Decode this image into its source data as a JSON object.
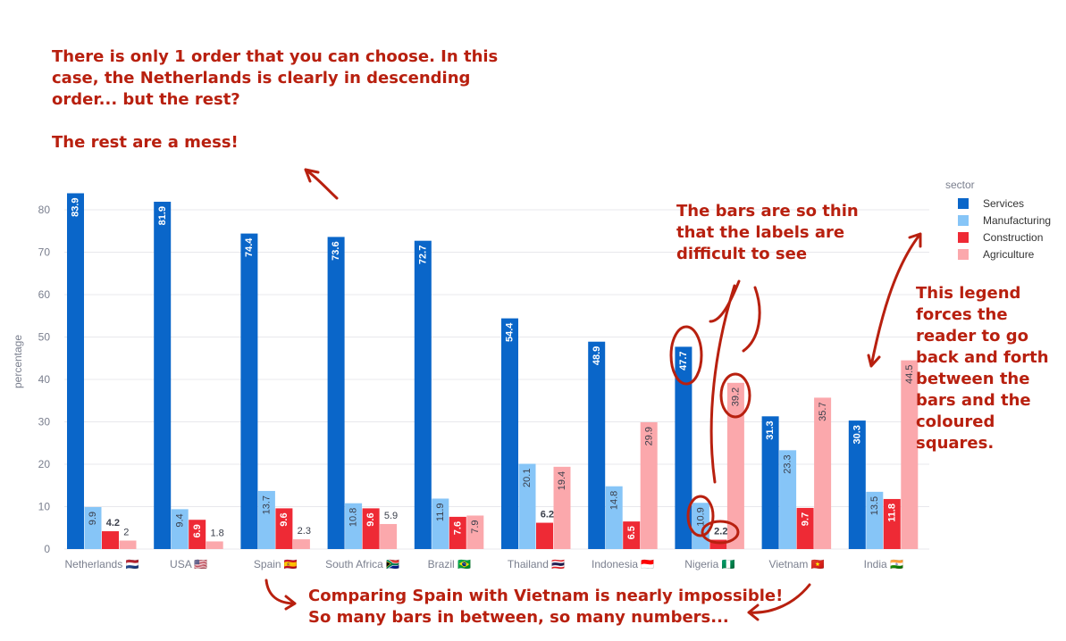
{
  "chart_data": {
    "type": "bar",
    "categories": [
      "Netherlands 🇳🇱",
      "USA 🇺🇸",
      "Spain 🇪🇸",
      "South Africa 🇿🇦",
      "Brazil 🇧🇷",
      "Thailand 🇹🇭",
      "Indonesia 🇮🇩",
      "Nigeria 🇳🇬",
      "Vietnam 🇻🇳",
      "India 🇮🇳"
    ],
    "series": [
      {
        "name": "Services",
        "color": "#0a66c9",
        "values": [
          83.9,
          81.9,
          74.4,
          73.6,
          72.7,
          54.4,
          48.9,
          47.7,
          31.3,
          30.3
        ]
      },
      {
        "name": "Manufacturing",
        "color": "#86c5f7",
        "values": [
          9.9,
          9.4,
          13.7,
          10.8,
          11.9,
          20.1,
          14.8,
          10.9,
          23.3,
          13.5
        ]
      },
      {
        "name": "Construction",
        "color": "#ee2a35",
        "values": [
          4.2,
          6.9,
          9.6,
          9.6,
          7.6,
          6.2,
          6.5,
          2.2,
          9.7,
          11.8
        ]
      },
      {
        "name": "Agriculture",
        "color": "#fba8ac",
        "values": [
          2,
          1.8,
          2.3,
          5.9,
          7.9,
          19.4,
          29.9,
          39.2,
          35.7,
          44.5
        ]
      }
    ],
    "ylabel": "percentage",
    "xlabel": "",
    "ylim": [
      0,
      84
    ],
    "yticks": [
      0,
      10,
      20,
      30,
      40,
      50,
      60,
      70,
      80
    ],
    "legend_title": "sector",
    "legend_position": "right",
    "grid": true
  },
  "annotations": {
    "order_note": "There is only 1 order that you can choose. In this\ncase, the Netherlands is clearly in descending\norder... but the rest?\n\nThe rest are a mess!",
    "thin_bars_note": "The bars are so thin\nthat the labels are\ndifficult to see",
    "legend_note": "This legend\nforces the\nreader to go\nback and forth\nbetween the\nbars and the\ncoloured\nsquares.",
    "comparison_note": "Comparing Spain with Vietnam is nearly impossible!\nSo many bars in between, so many numbers..."
  },
  "colors": {
    "annotation": "#b8200f",
    "grid": "#e8e8ec",
    "axis_text": "#7a7f8e"
  }
}
